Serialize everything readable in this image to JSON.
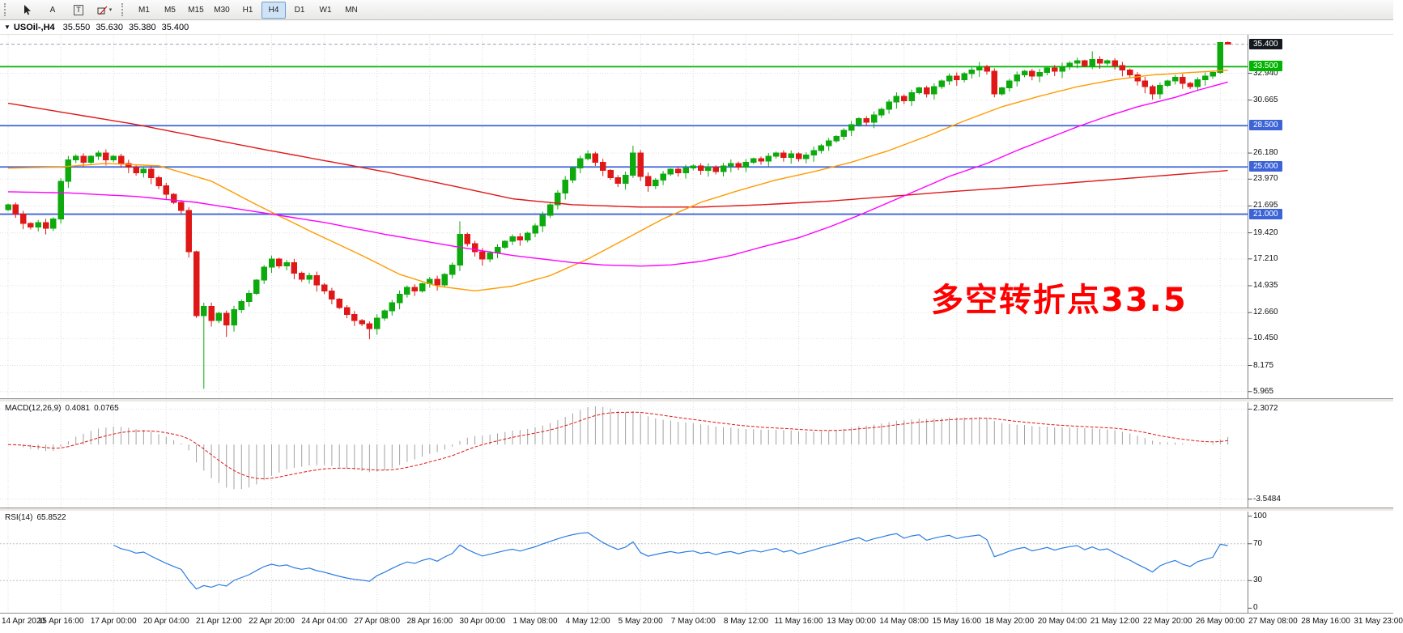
{
  "toolbar": {
    "tools": [
      {
        "name": "cursor-tool",
        "icon": "cursor"
      },
      {
        "name": "text-tool",
        "label": "A"
      },
      {
        "name": "text-label-tool",
        "label": "T",
        "boxed": true
      },
      {
        "name": "arrows-tool",
        "icon": "shapes",
        "caret": true
      }
    ],
    "timeframes": [
      "M1",
      "M5",
      "M15",
      "M30",
      "H1",
      "H4",
      "D1",
      "W1",
      "MN"
    ],
    "active_timeframe": "H4"
  },
  "header": {
    "dropdown_icon": "▼",
    "symbol_period": "USOil-,H4",
    "open": "35.550",
    "high": "35.630",
    "low": "35.380",
    "close": "35.400"
  },
  "annotation": {
    "text": "多空转折点33.5",
    "color": "#ff0000"
  },
  "price_axis": {
    "plain_ticks": [
      "32.940",
      "30.665",
      "26.180",
      "23.970",
      "21.695",
      "19.420",
      "17.210",
      "14.935",
      "12.660",
      "10.450",
      "8.175",
      "5.965"
    ],
    "boxed_ticks": [
      {
        "label": "35.400",
        "price": 35.4,
        "color": "#14181f"
      },
      {
        "label": "33.500",
        "price": 33.5,
        "color": "#00b400"
      },
      {
        "label": "28.500",
        "price": 28.5,
        "color": "#3c64d7"
      },
      {
        "label": "25.000",
        "price": 25.0,
        "color": "#3c64d7"
      },
      {
        "label": "21.000",
        "price": 21.0,
        "color": "#3c64d7"
      }
    ]
  },
  "time_axis": {
    "labels": [
      "14 Apr 2020",
      "15 Apr 16:00",
      "17 Apr 00:00",
      "20 Apr 04:00",
      "21 Apr 12:00",
      "22 Apr 20:00",
      "24 Apr 04:00",
      "27 Apr 08:00",
      "28 Apr 16:00",
      "30 Apr 00:00",
      "1 May 08:00",
      "4 May 12:00",
      "5 May 20:00",
      "7 May 04:00",
      "8 May 12:00",
      "11 May 16:00",
      "13 May 00:00",
      "14 May 08:00",
      "15 May 16:00",
      "18 May 20:00",
      "20 May 04:00",
      "21 May 12:00",
      "22 May 20:00",
      "26 May 00:00",
      "27 May 08:00",
      "28 May 16:00",
      "31 May 23:00"
    ]
  },
  "macd_panel": {
    "name": "MACD(12,26,9)",
    "main_value": "0.4081",
    "signal_value": "0.0765",
    "ticks": [
      "2.3072",
      "-3.5484"
    ],
    "histogram_color": "#a2a2a2",
    "signal_color": "#e01717"
  },
  "rsi_panel": {
    "name": "RSI(14)",
    "value": "65.8522",
    "ticks": [
      "100",
      "70",
      "30",
      "0"
    ],
    "levels": [
      70,
      30
    ],
    "line_color": "#2a7de1"
  },
  "chart_data": {
    "type": "candlestick",
    "symbol": "USOil-",
    "timeframe": "H4",
    "title": "USOil-,H4 35.550 35.630 35.380 35.400",
    "current_bar": {
      "open": 35.55,
      "high": 35.63,
      "low": 35.38,
      "close": 35.4
    },
    "y_axis_range": [
      5.4,
      36.2
    ],
    "bull_color": "#0caa0c",
    "bear_color": "#e01717",
    "first_open": 21.4,
    "closes": [
      21.8,
      21.0,
      20.2,
      19.9,
      20.3,
      19.8,
      20.6,
      23.8,
      25.6,
      25.9,
      25.4,
      25.9,
      26.2,
      25.6,
      25.9,
      25.3,
      25.0,
      24.5,
      24.8,
      24.1,
      23.4,
      22.7,
      22.0,
      21.3,
      17.8,
      12.4,
      13.2,
      12.0,
      12.6,
      11.6,
      12.9,
      13.6,
      14.3,
      15.4,
      16.5,
      17.2,
      16.6,
      16.9,
      16.0,
      15.5,
      15.8,
      15.0,
      14.5,
      13.8,
      13.1,
      12.5,
      12.0,
      11.7,
      11.3,
      12.2,
      12.8,
      13.5,
      14.2,
      14.8,
      14.5,
      15.1,
      15.5,
      15.0,
      15.9,
      16.7,
      19.3,
      18.5,
      17.8,
      17.2,
      17.7,
      18.2,
      18.7,
      19.1,
      18.8,
      19.4,
      20.0,
      20.9,
      21.8,
      22.8,
      23.9,
      24.9,
      25.7,
      26.1,
      25.4,
      24.7,
      24.1,
      23.6,
      24.3,
      26.2,
      24.2,
      23.4,
      23.9,
      24.4,
      24.8,
      24.5,
      24.9,
      25.1,
      24.7,
      25.0,
      24.6,
      25.1,
      25.3,
      25.0,
      25.4,
      25.7,
      25.5,
      25.9,
      26.2,
      25.8,
      26.1,
      25.7,
      26.0,
      26.4,
      26.8,
      27.2,
      27.6,
      28.1,
      28.6,
      29.1,
      28.8,
      29.4,
      29.9,
      30.5,
      31.0,
      30.6,
      31.3,
      31.7,
      31.2,
      31.8,
      32.3,
      32.7,
      32.4,
      32.9,
      33.2,
      33.5,
      33.1,
      31.2,
      31.7,
      32.3,
      32.8,
      33.1,
      32.7,
      33.0,
      33.4,
      33.1,
      33.5,
      33.8,
      34.0,
      33.6,
      34.1,
      33.8,
      34.0,
      33.6,
      33.2,
      32.8,
      32.3,
      31.8,
      31.2,
      31.9,
      32.3,
      32.6,
      32.1,
      31.8,
      32.4,
      32.7,
      33.0,
      35.55,
      35.4
    ],
    "bar_overrides": {
      "26": {
        "low": 6.2,
        "high": 13.5
      },
      "29": {
        "low": 10.6
      },
      "35": {
        "high": 17.5
      },
      "48": {
        "low": 10.4
      },
      "60": {
        "high": 20.4
      },
      "77": {
        "high": 26.4
      },
      "81": {
        "low": 23.3
      },
      "83": {
        "high": 26.8
      },
      "85": {
        "low": 22.9
      },
      "129": {
        "high": 33.9
      },
      "131": {
        "low": 30.9
      },
      "144": {
        "high": 34.8
      },
      "152": {
        "low": 30.7
      },
      "161": {
        "high": 35.6,
        "low": 32.9
      },
      "162": {
        "high": 35.63,
        "low": 35.38
      }
    },
    "horizontal_lines": [
      {
        "price": 33.5,
        "color": "#00b400",
        "label": "33.500"
      },
      {
        "price": 28.5,
        "color": "#3c64d7",
        "label": "28.500"
      },
      {
        "price": 25.0,
        "color": "#3c64d7",
        "label": "25.000"
      },
      {
        "price": 21.0,
        "color": "#3c64d7",
        "label": "21.000"
      }
    ],
    "last_price_line": {
      "price": 35.4,
      "label": "35.400"
    },
    "moving_averages": [
      {
        "name": "red-ma",
        "color": "#e01717",
        "points": [
          [
            0,
            30.4
          ],
          [
            17,
            28.6
          ],
          [
            33,
            26.6
          ],
          [
            50,
            24.6
          ],
          [
            59,
            23.4
          ],
          [
            67,
            22.3
          ],
          [
            75,
            21.8
          ],
          [
            84,
            21.6
          ],
          [
            92,
            21.6
          ],
          [
            100,
            21.8
          ],
          [
            109,
            22.1
          ],
          [
            117,
            22.5
          ],
          [
            125,
            22.9
          ],
          [
            134,
            23.3
          ],
          [
            142,
            23.7
          ],
          [
            150,
            24.1
          ],
          [
            162,
            24.7
          ]
        ]
      },
      {
        "name": "orange-ma",
        "color": "#ff9b00",
        "points": [
          [
            0,
            24.9
          ],
          [
            7,
            25.0
          ],
          [
            13,
            25.3
          ],
          [
            20,
            25.1
          ],
          [
            27,
            23.8
          ],
          [
            33,
            21.8
          ],
          [
            40,
            19.6
          ],
          [
            47,
            17.5
          ],
          [
            52,
            15.9
          ],
          [
            57,
            14.9
          ],
          [
            62,
            14.5
          ],
          [
            67,
            14.9
          ],
          [
            72,
            15.8
          ],
          [
            77,
            17.2
          ],
          [
            82,
            18.9
          ],
          [
            87,
            20.6
          ],
          [
            92,
            22.0
          ],
          [
            97,
            23.0
          ],
          [
            102,
            23.9
          ],
          [
            107,
            24.6
          ],
          [
            112,
            25.4
          ],
          [
            117,
            26.4
          ],
          [
            122,
            27.6
          ],
          [
            127,
            28.9
          ],
          [
            132,
            30.1
          ],
          [
            137,
            31.0
          ],
          [
            142,
            31.8
          ],
          [
            147,
            32.4
          ],
          [
            152,
            32.8
          ],
          [
            157,
            33.0
          ],
          [
            162,
            33.2
          ]
        ]
      },
      {
        "name": "magenta-ma",
        "color": "#ff00ff",
        "points": [
          [
            0,
            22.9
          ],
          [
            8,
            22.8
          ],
          [
            17,
            22.5
          ],
          [
            25,
            22.0
          ],
          [
            33,
            21.2
          ],
          [
            42,
            20.3
          ],
          [
            50,
            19.3
          ],
          [
            59,
            18.3
          ],
          [
            67,
            17.5
          ],
          [
            75,
            16.9
          ],
          [
            79,
            16.7
          ],
          [
            84,
            16.6
          ],
          [
            88,
            16.7
          ],
          [
            92,
            17.0
          ],
          [
            96,
            17.5
          ],
          [
            100,
            18.2
          ],
          [
            105,
            19.0
          ],
          [
            109,
            19.9
          ],
          [
            113,
            20.9
          ],
          [
            117,
            22.0
          ],
          [
            121,
            23.1
          ],
          [
            125,
            24.2
          ],
          [
            130,
            25.3
          ],
          [
            134,
            26.4
          ],
          [
            138,
            27.4
          ],
          [
            142,
            28.4
          ],
          [
            146,
            29.3
          ],
          [
            150,
            30.1
          ],
          [
            155,
            30.9
          ],
          [
            158,
            31.5
          ],
          [
            162,
            32.2
          ]
        ]
      }
    ],
    "x_labels": [
      "14 Apr 2020",
      "15 Apr 16:00",
      "17 Apr 00:00",
      "20 Apr 04:00",
      "21 Apr 12:00",
      "22 Apr 20:00",
      "24 Apr 04:00",
      "27 Apr 08:00",
      "28 Apr 16:00",
      "30 Apr 00:00",
      "1 May 08:00",
      "4 May 12:00",
      "5 May 20:00",
      "7 May 04:00",
      "8 May 12:00",
      "11 May 16:00",
      "13 May 00:00",
      "14 May 08:00",
      "15 May 16:00",
      "18 May 20:00",
      "20 May 04:00",
      "21 May 12:00",
      "22 May 20:00",
      "26 May 00:00",
      "27 May 08:00",
      "28 May 16:00",
      "31 May 23:00"
    ],
    "indicators": {
      "macd": {
        "label": "MACD(12,26,9)",
        "current_main": 0.4081,
        "current_signal": 0.0765,
        "scale": [
          -3.5484,
          2.3072
        ]
      },
      "rsi": {
        "label": "RSI(14)",
        "current": 65.8522,
        "levels": [
          30,
          70
        ],
        "scale": [
          0,
          100
        ]
      }
    }
  }
}
